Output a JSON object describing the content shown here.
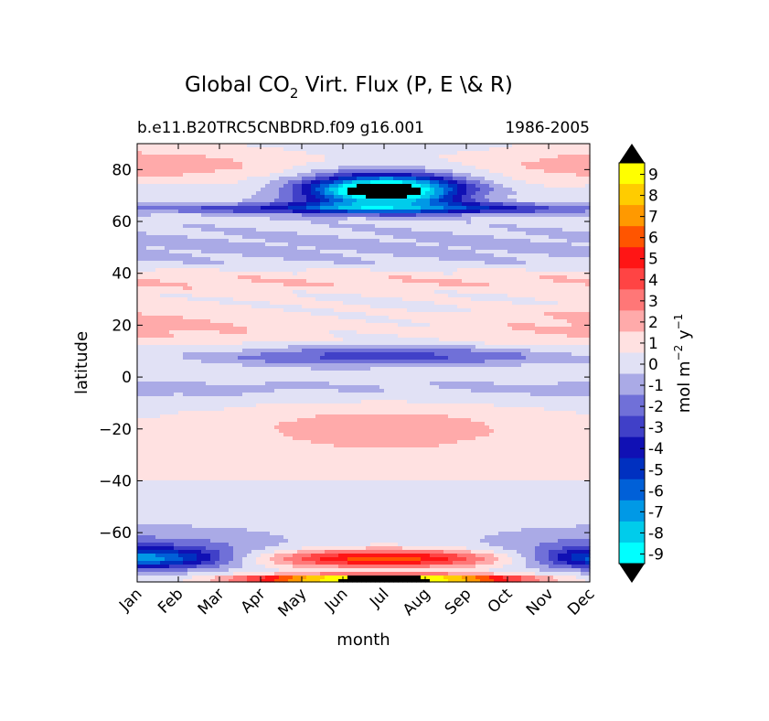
{
  "chart_data": {
    "type": "heatmap",
    "title": {
      "main": "Global CO",
      "subscript": "2",
      "rest": " Virt. Flux (P, E \\& R)"
    },
    "subtitle_left": "b.e11.B20TRC5CNBDRD.f09 g16.001",
    "subtitle_right": "1986-2005",
    "xlabel": "month",
    "ylabel": "latitude",
    "x_categories": [
      "Jan",
      "Feb",
      "Mar",
      "Apr",
      "May",
      "Jun",
      "Jul",
      "Aug",
      "Sep",
      "Oct",
      "Nov",
      "Dec"
    ],
    "y_ticks": [
      80,
      60,
      40,
      20,
      0,
      -20,
      -40,
      -60
    ],
    "ylim": [
      -79,
      90
    ],
    "colorbar": {
      "label_main": "mol m",
      "label_exp1": "−2",
      "label_mid": " y",
      "label_exp2": "−1",
      "tick_labels": [
        "9",
        "8",
        "7",
        "6",
        "5",
        "4",
        "3",
        "2",
        "1",
        "0",
        "-1",
        "-2",
        "-3",
        "-4",
        "-5",
        "-6",
        "-7",
        "-8",
        "-9"
      ],
      "level_colors": [
        "#ffff00",
        "#ffcc00",
        "#ff9900",
        "#ff5500",
        "#ff1515",
        "#ff4444",
        "#ff7777",
        "#ffaaaa",
        "#ffe1e1",
        "#e1e1f5",
        "#aaaae6",
        "#7070d8",
        "#4040c8",
        "#1010b4",
        "#0030c0",
        "#0060d8",
        "#0099e6",
        "#00cceb",
        "#00ffff"
      ],
      "over_color": "#000000",
      "under_color": "#000000"
    },
    "field_description": "Monthly climatology of CO2 virtual flux by latitude; extreme negative values near 70-75N in Jul-Aug, positive band near 75S in Mar-Oct."
  }
}
